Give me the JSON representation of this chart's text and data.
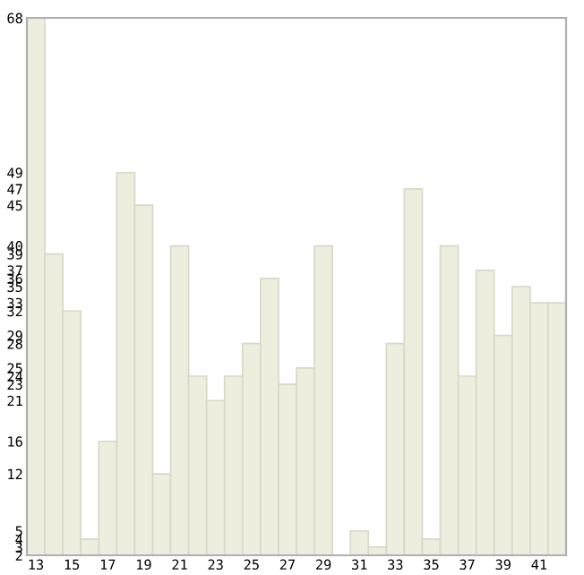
{
  "chart_data": {
    "type": "bar",
    "categories": [
      "13",
      null,
      "15",
      null,
      "17",
      null,
      "19",
      null,
      "21",
      null,
      "23",
      null,
      "25",
      null,
      "27",
      null,
      "29",
      null,
      "31",
      null,
      "33",
      null,
      "35",
      null,
      "37",
      null,
      "39",
      null,
      "41",
      null
    ],
    "values": [
      68,
      39,
      32,
      4,
      16,
      49,
      45,
      12,
      40,
      24,
      21,
      24,
      28,
      36,
      23,
      25,
      40,
      2,
      5,
      3,
      28,
      47,
      4,
      40,
      24,
      37,
      29,
      35,
      33,
      33
    ],
    "color": "#eeeedf",
    "ylim": [
      2,
      68
    ],
    "yticks": [
      2,
      3,
      4,
      5,
      12,
      16,
      21,
      23,
      24,
      25,
      28,
      29,
      32,
      33,
      35,
      36,
      37,
      39,
      40,
      45,
      47,
      49,
      68
    ],
    "grid": false
  }
}
